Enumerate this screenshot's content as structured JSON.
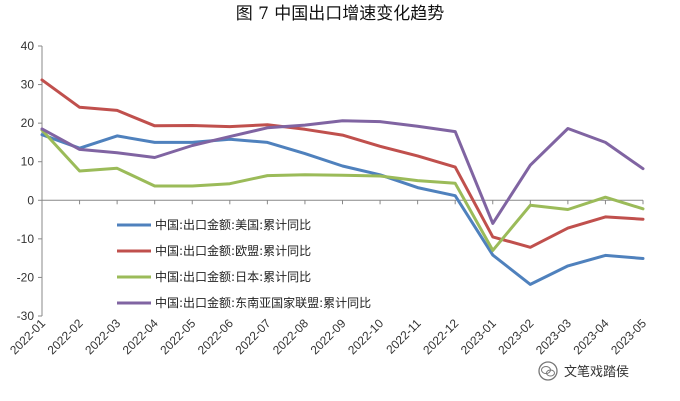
{
  "chart_data": {
    "type": "line",
    "title": "图 7  中国出口增速变化趋势",
    "xlabel": "",
    "ylabel": "",
    "ylim": [
      -30,
      40
    ],
    "yticks": [
      -30,
      -20,
      -10,
      0,
      10,
      20,
      30,
      40
    ],
    "categories": [
      "2022-01",
      "2022-02",
      "2022-03",
      "2022-04",
      "2022-05",
      "2022-06",
      "2022-07",
      "2022-08",
      "2022-09",
      "2022-10",
      "2022-11",
      "2022-12",
      "2023-01",
      "2023-02",
      "2023-03",
      "2023-04",
      "2023-05"
    ],
    "legend_position": "lower-left",
    "grid": false,
    "series": [
      {
        "name": "中国:出口金额:美国:累计同比",
        "color": "#4f81bd",
        "values": [
          17,
          13.5,
          16.7,
          15,
          15,
          15.8,
          15,
          12.1,
          8.9,
          6.6,
          3.3,
          1.2,
          -14.2,
          -21.8,
          -17,
          -14.3,
          -15.1
        ]
      },
      {
        "name": "中国:出口金额:欧盟:累计同比",
        "color": "#c0504d",
        "values": [
          31.2,
          24.1,
          23.3,
          19.3,
          19.4,
          19.1,
          19.6,
          18.4,
          16.9,
          14,
          11.5,
          8.6,
          -9.5,
          -12.2,
          -7.2,
          -4.3,
          -4.9
        ]
      },
      {
        "name": "中国:出口金额:日本:累计同比",
        "color": "#9bbb59",
        "values": [
          18.2,
          7.6,
          8.3,
          3.7,
          3.7,
          4.3,
          6.4,
          6.6,
          6.5,
          6.3,
          5.1,
          4.4,
          -13,
          -1.3,
          -2.4,
          0.8,
          -2.2
        ]
      },
      {
        "name": "中国:出口金额:东南亚国家联盟:累计同比",
        "color": "#8064a2",
        "values": [
          18.5,
          13.2,
          12.3,
          11.1,
          14.2,
          16.5,
          18.8,
          19.5,
          20.6,
          20.4,
          19.2,
          17.8,
          -6,
          9.1,
          18.6,
          15,
          8.2
        ]
      }
    ]
  },
  "watermark": {
    "text": "文笔戏踏侯",
    "icon": "wechat-logo-icon"
  }
}
